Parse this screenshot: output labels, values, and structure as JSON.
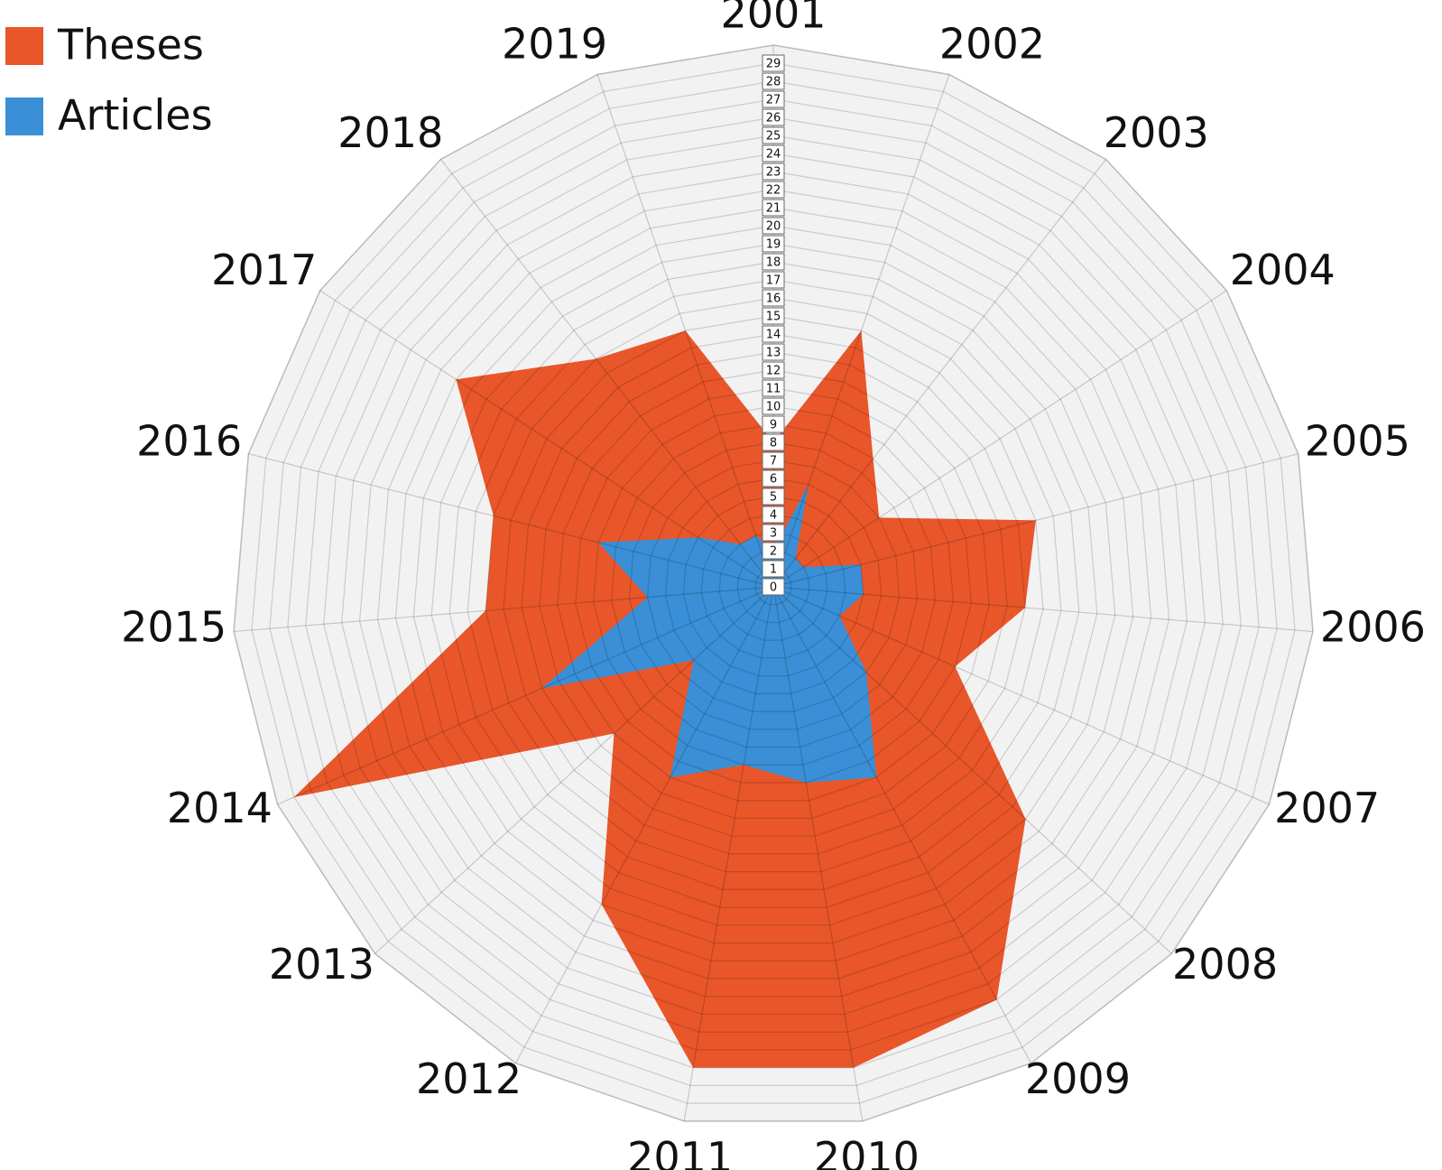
{
  "chart_data": {
    "type": "radar",
    "categories": [
      "2001",
      "2002",
      "2003",
      "2004",
      "2005",
      "2006",
      "2007",
      "2008",
      "2009",
      "2010",
      "2011",
      "2012",
      "2013",
      "2014",
      "2015",
      "2016",
      "2017",
      "2018",
      "2019"
    ],
    "series": [
      {
        "name": "Theses",
        "color": "#e8562a",
        "values": [
          8,
          15,
          9,
          7,
          15,
          14,
          11,
          19,
          26,
          27,
          27,
          20,
          12,
          29,
          16,
          16,
          21,
          16,
          15
        ]
      },
      {
        "name": "Articles",
        "color": "#3a8fd6",
        "values": [
          2,
          6,
          2,
          2,
          5,
          5,
          4,
          7,
          12,
          11,
          10,
          12,
          6,
          14,
          7,
          10,
          5,
          3,
          3
        ]
      }
    ],
    "ylim": [
      0,
      30
    ],
    "yticks": [
      0,
      1,
      2,
      3,
      4,
      5,
      6,
      7,
      8,
      9,
      10,
      11,
      12,
      13,
      14,
      15,
      16,
      17,
      18,
      19,
      20,
      21,
      22,
      23,
      24,
      25,
      26,
      27,
      28,
      29
    ],
    "grid": true,
    "legend": "top-left"
  }
}
